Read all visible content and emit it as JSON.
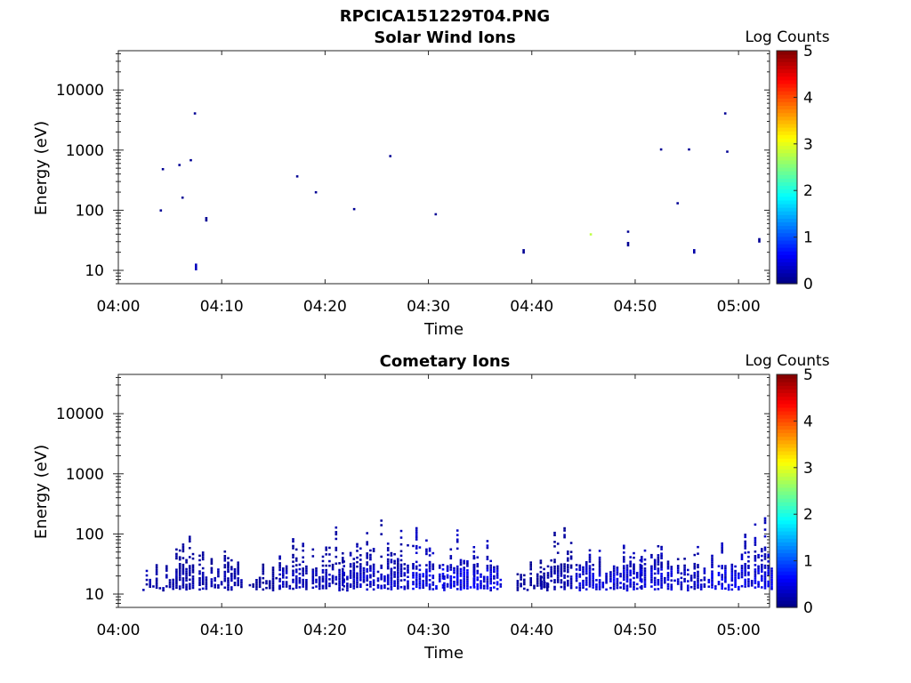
{
  "figure_title": "RPCICA151229T04.PNG",
  "chart_data": [
    {
      "type": "heatmap",
      "title": "Solar Wind Ions",
      "xlabel": "Time",
      "ylabel": "Energy (eV)",
      "x_ticks": [
        "04:00",
        "04:10",
        "04:20",
        "04:30",
        "04:40",
        "04:50",
        "05:00"
      ],
      "x_range_minutes": [
        0,
        63
      ],
      "y_scale": "log",
      "y_range": [
        6,
        45000
      ],
      "y_ticks": [
        10,
        100,
        1000,
        10000
      ],
      "y_tick_labels": [
        "10",
        "100",
        "1000",
        "10000"
      ],
      "colorbar": {
        "label": "Log Counts",
        "range": [
          0,
          5
        ],
        "ticks": [
          "0",
          "1",
          "2",
          "3",
          "4",
          "5"
        ],
        "colormap": "jet"
      },
      "cells": [
        {
          "t": 4.0,
          "e": 95,
          "c": 0.1
        },
        {
          "t": 4.2,
          "e": 460,
          "c": 0.1
        },
        {
          "t": 5.8,
          "e": 540,
          "c": 0.1
        },
        {
          "t": 6.1,
          "e": 155,
          "c": 0.1
        },
        {
          "t": 6.9,
          "e": 650,
          "c": 0.1
        },
        {
          "t": 7.3,
          "e": 3900,
          "c": 0.1
        },
        {
          "t": 7.4,
          "e": 10,
          "c": 0.3,
          "span": 3
        },
        {
          "t": 8.4,
          "e": 65,
          "c": 0.1,
          "span": 2
        },
        {
          "t": 17.2,
          "e": 350,
          "c": 0.1
        },
        {
          "t": 19.0,
          "e": 190,
          "c": 0.1
        },
        {
          "t": 22.7,
          "e": 100,
          "c": 0.1
        },
        {
          "t": 26.2,
          "e": 760,
          "c": 0.1
        },
        {
          "t": 30.6,
          "e": 82,
          "c": 0.1
        },
        {
          "t": 39.1,
          "e": 19,
          "c": 0.1,
          "span": 2
        },
        {
          "t": 45.6,
          "e": 38,
          "c": 2.8
        },
        {
          "t": 49.2,
          "e": 42,
          "c": 0.1
        },
        {
          "t": 49.2,
          "e": 25,
          "c": 0.1,
          "span": 2
        },
        {
          "t": 52.4,
          "e": 980,
          "c": 0.1
        },
        {
          "t": 54.0,
          "e": 125,
          "c": 0.1
        },
        {
          "t": 55.1,
          "e": 980,
          "c": 0.1
        },
        {
          "t": 55.6,
          "e": 19,
          "c": 0.2,
          "span": 2
        },
        {
          "t": 58.6,
          "e": 3900,
          "c": 0.1
        },
        {
          "t": 58.8,
          "e": 900,
          "c": 0.1
        },
        {
          "t": 61.9,
          "e": 29,
          "c": 0.1,
          "span": 2
        }
      ]
    },
    {
      "type": "heatmap",
      "title": "Cometary Ions",
      "xlabel": "Time",
      "ylabel": "Energy (eV)",
      "x_ticks": [
        "04:00",
        "04:10",
        "04:20",
        "04:30",
        "04:40",
        "04:50",
        "05:00"
      ],
      "x_range_minutes": [
        0,
        63
      ],
      "y_scale": "log",
      "y_range": [
        6,
        45000
      ],
      "y_ticks": [
        10,
        100,
        1000,
        10000
      ],
      "y_tick_labels": [
        "10",
        "100",
        "1000",
        "10000"
      ],
      "colorbar": {
        "label": "Log Counts",
        "range": [
          0,
          5
        ],
        "ticks": [
          "0",
          "1",
          "2",
          "3",
          "4",
          "5"
        ],
        "colormap": "jet"
      },
      "bursts": [
        {
          "t": 3.6,
          "top": 35,
          "c": 0.15
        },
        {
          "t": 6.8,
          "top": 150,
          "c": 0.15
        },
        {
          "t": 10.2,
          "top": 75,
          "c": 0.15
        },
        {
          "t": 13.9,
          "top": 40,
          "c": 0.1
        },
        {
          "t": 16.8,
          "top": 150,
          "c": 0.2
        },
        {
          "t": 20.0,
          "top": 170,
          "c": 0.2
        },
        {
          "t": 23.0,
          "top": 150,
          "c": 0.25
        },
        {
          "t": 26.3,
          "top": 190,
          "c": 0.25
        },
        {
          "t": 29.7,
          "top": 140,
          "c": 0.35
        },
        {
          "t": 32.7,
          "top": 150,
          "c": 0.35
        },
        {
          "t": 35.6,
          "top": 90,
          "c": 0.35
        },
        {
          "t": 39.8,
          "top": 45,
          "c": 0.1
        },
        {
          "t": 42.1,
          "top": 150,
          "c": 0.15
        },
        {
          "t": 45.5,
          "top": 95,
          "c": 0.3
        },
        {
          "t": 48.8,
          "top": 85,
          "c": 0.3
        },
        {
          "t": 51.8,
          "top": 150,
          "c": 0.3
        },
        {
          "t": 55.0,
          "top": 85,
          "c": 0.25
        },
        {
          "t": 58.3,
          "top": 85,
          "c": 0.35
        },
        {
          "t": 61.5,
          "top": 200,
          "c": 0.35
        }
      ]
    }
  ]
}
